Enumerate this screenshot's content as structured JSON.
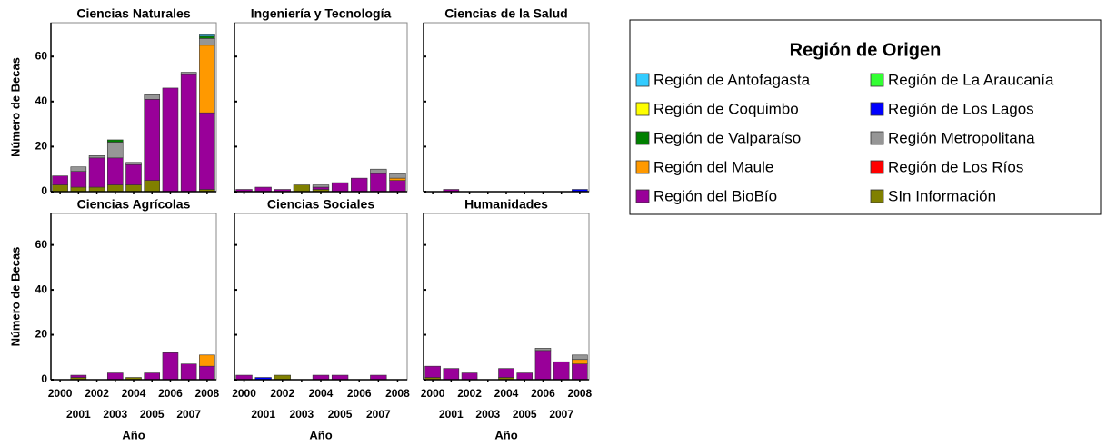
{
  "legend_title": "Región de Origen",
  "chart_data": [
    {
      "type": "bar",
      "stacked": true,
      "title": "Ciencias Naturales",
      "ylabel": "Número de Becas",
      "ytick_labels": true,
      "categories": [
        null,
        null,
        null,
        null,
        null,
        null,
        null,
        null,
        null
      ],
      "ylim": [
        0,
        75
      ],
      "yticks": [
        0,
        20,
        40,
        60
      ],
      "series": [
        {
          "name": "Región de Antofagasta",
          "color": "#33CCFF",
          "values": [
            0,
            0,
            0,
            0,
            0,
            0,
            0,
            0,
            1
          ]
        },
        {
          "name": "Región de La Araucanía",
          "color": "#33FF33",
          "values": [
            0,
            0,
            0,
            0,
            0,
            0,
            0,
            0,
            0
          ]
        },
        {
          "name": "Región de Coquimbo",
          "color": "#FFFF00",
          "values": [
            0,
            0,
            0,
            0,
            0,
            0,
            0,
            0,
            0
          ]
        },
        {
          "name": "Región de Los Lagos",
          "color": "#0000FF",
          "values": [
            0,
            0,
            0,
            0,
            0,
            0,
            0,
            0,
            0
          ]
        },
        {
          "name": "Región de Valparaíso",
          "color": "#008000",
          "values": [
            0,
            0,
            0,
            1,
            0,
            0,
            0,
            0,
            1
          ]
        },
        {
          "name": "Región Metropolitana",
          "color": "#969696",
          "values": [
            0,
            2,
            1,
            7,
            1,
            2,
            0,
            1,
            3
          ]
        },
        {
          "name": "Región del Maule",
          "color": "#FF9900",
          "values": [
            0,
            0,
            0,
            0,
            0,
            0,
            0,
            0,
            30
          ]
        },
        {
          "name": "Región de Los Ríos",
          "color": "#FF0000",
          "values": [
            0,
            0,
            0,
            0,
            0,
            0,
            0,
            0,
            0
          ]
        },
        {
          "name": "Región del BioBío",
          "color": "#990099",
          "values": [
            4,
            7,
            13,
            12,
            9,
            36,
            46,
            52,
            34
          ]
        },
        {
          "name": "SIn Información",
          "color": "#808000",
          "values": [
            3,
            2,
            2,
            3,
            3,
            5,
            0,
            0,
            1
          ]
        }
      ]
    },
    {
      "type": "bar",
      "stacked": true,
      "title": "Ingeniería y Tecnología",
      "ytick_labels": false,
      "categories": [
        null,
        null,
        null,
        null,
        null,
        null,
        null,
        null,
        null
      ],
      "ylim": [
        0,
        75
      ],
      "yticks": [
        0,
        20,
        40,
        60
      ],
      "series": [
        {
          "name": "Región de Antofagasta",
          "color": "#33CCFF",
          "values": [
            0,
            0,
            0,
            0,
            0,
            0,
            0,
            0,
            0
          ]
        },
        {
          "name": "Región de La Araucanía",
          "color": "#33FF33",
          "values": [
            0,
            0,
            0,
            0,
            0,
            0,
            0,
            0,
            0
          ]
        },
        {
          "name": "Región de Coquimbo",
          "color": "#FFFF00",
          "values": [
            0,
            0,
            0,
            0,
            0,
            0,
            0,
            0,
            0
          ]
        },
        {
          "name": "Región de Los Lagos",
          "color": "#0000FF",
          "values": [
            0,
            0,
            0,
            0,
            0,
            0,
            0,
            0,
            0
          ]
        },
        {
          "name": "Región de Valparaíso",
          "color": "#008000",
          "values": [
            0,
            0,
            0,
            0,
            0,
            0,
            0,
            0,
            0
          ]
        },
        {
          "name": "Región Metropolitana",
          "color": "#969696",
          "values": [
            0,
            0,
            0,
            0,
            1,
            0,
            0,
            2,
            2
          ]
        },
        {
          "name": "Región del Maule",
          "color": "#FF9900",
          "values": [
            0,
            0,
            0,
            0,
            0,
            0,
            0,
            0,
            1
          ]
        },
        {
          "name": "Región de Los Ríos",
          "color": "#FF0000",
          "values": [
            0,
            0,
            0,
            0,
            0,
            0,
            0,
            0,
            0
          ]
        },
        {
          "name": "Región del BioBío",
          "color": "#990099",
          "values": [
            1,
            2,
            1,
            0,
            1,
            4,
            6,
            8,
            5
          ]
        },
        {
          "name": "SIn Información",
          "color": "#808000",
          "values": [
            0,
            0,
            0,
            3,
            1,
            0,
            0,
            0,
            0
          ]
        }
      ]
    },
    {
      "type": "bar",
      "stacked": true,
      "title": "Ciencias de la Salud",
      "ytick_labels": false,
      "categories": [
        null,
        null,
        null,
        null,
        null,
        null,
        null,
        null,
        null
      ],
      "ylim": [
        0,
        75
      ],
      "yticks": [
        0,
        20,
        40,
        60
      ],
      "series": [
        {
          "name": "Región de Antofagasta",
          "color": "#33CCFF",
          "values": [
            0,
            0,
            0,
            0,
            0,
            0,
            0,
            0,
            0
          ]
        },
        {
          "name": "Región de La Araucanía",
          "color": "#33FF33",
          "values": [
            0,
            0,
            0,
            0,
            0,
            0,
            0,
            0,
            0
          ]
        },
        {
          "name": "Región de Coquimbo",
          "color": "#FFFF00",
          "values": [
            0,
            0,
            0,
            0,
            0,
            0,
            0,
            0,
            0
          ]
        },
        {
          "name": "Región de Los Lagos",
          "color": "#0000FF",
          "values": [
            0,
            0,
            0,
            0,
            0,
            0,
            0,
            0,
            1
          ]
        },
        {
          "name": "Región de Valparaíso",
          "color": "#008000",
          "values": [
            0,
            0,
            0,
            0,
            0,
            0,
            0,
            0,
            0
          ]
        },
        {
          "name": "Región Metropolitana",
          "color": "#969696",
          "values": [
            0,
            0,
            0,
            0,
            0,
            0,
            0,
            0,
            0
          ]
        },
        {
          "name": "Región del Maule",
          "color": "#FF9900",
          "values": [
            0,
            0,
            0,
            0,
            0,
            0,
            0,
            0,
            0
          ]
        },
        {
          "name": "Región de Los Ríos",
          "color": "#FF0000",
          "values": [
            0,
            0,
            0,
            0,
            0,
            0,
            0,
            0,
            0
          ]
        },
        {
          "name": "Región del BioBío",
          "color": "#990099",
          "values": [
            0,
            1,
            0,
            0,
            0,
            0,
            0,
            0,
            0
          ]
        },
        {
          "name": "SIn Información",
          "color": "#808000",
          "values": [
            0,
            0,
            0,
            0,
            0,
            0,
            0,
            0,
            0
          ]
        }
      ]
    },
    {
      "type": "bar",
      "stacked": true,
      "title": "Ciencias Agrícolas",
      "ylabel": "Número de Becas",
      "xlabel": "Año",
      "ytick_labels": true,
      "categories": [
        "2000",
        "2001",
        "2002",
        "2003",
        "2004",
        "2005",
        "2006",
        "2007",
        "2008"
      ],
      "ylim": [
        0,
        74
      ],
      "yticks": [
        0,
        20,
        40,
        60
      ],
      "series": [
        {
          "name": "Región de Antofagasta",
          "color": "#33CCFF",
          "values": [
            0,
            0,
            0,
            0,
            0,
            0,
            0,
            0,
            0
          ]
        },
        {
          "name": "Región de La Araucanía",
          "color": "#33FF33",
          "values": [
            0,
            0,
            0,
            0,
            0,
            0,
            0,
            0,
            0
          ]
        },
        {
          "name": "Región de Coquimbo",
          "color": "#FFFF00",
          "values": [
            0,
            0,
            0,
            0,
            0,
            0,
            0,
            0,
            0
          ]
        },
        {
          "name": "Región de Los Lagos",
          "color": "#0000FF",
          "values": [
            0,
            0,
            0,
            0,
            0,
            0,
            0,
            0,
            0
          ]
        },
        {
          "name": "Región de Valparaíso",
          "color": "#008000",
          "values": [
            0,
            0,
            0,
            0,
            0,
            0,
            0,
            0,
            0
          ]
        },
        {
          "name": "Región Metropolitana",
          "color": "#969696",
          "values": [
            0,
            0,
            0,
            0,
            0,
            0,
            0,
            0,
            0
          ]
        },
        {
          "name": "Región del Maule",
          "color": "#FF9900",
          "values": [
            0,
            0,
            0,
            0,
            0,
            0,
            0,
            0,
            5
          ]
        },
        {
          "name": "Región de Los Ríos",
          "color": "#FF0000",
          "values": [
            0,
            0,
            0,
            0,
            0,
            0,
            0,
            0,
            0
          ]
        },
        {
          "name": "Región del BioBío",
          "color": "#990099",
          "values": [
            0,
            1,
            0,
            3,
            0,
            3,
            12,
            7,
            6
          ]
        },
        {
          "name": "SIn Información",
          "color": "#808000",
          "values": [
            0,
            1,
            0,
            0,
            1,
            0,
            0,
            0,
            0
          ]
        }
      ]
    },
    {
      "type": "bar",
      "stacked": true,
      "title": "Ciencias Sociales",
      "xlabel": "Año",
      "ytick_labels": false,
      "categories": [
        "2000",
        "2001",
        "2002",
        "2003",
        "2004",
        "2005",
        "2006",
        "2007",
        "2008"
      ],
      "ylim": [
        0,
        74
      ],
      "yticks": [
        0,
        20,
        40,
        60
      ],
      "series": [
        {
          "name": "Región de Antofagasta",
          "color": "#33CCFF",
          "values": [
            0,
            0,
            0,
            0,
            0,
            0,
            0,
            0,
            0
          ]
        },
        {
          "name": "Región de La Araucanía",
          "color": "#33FF33",
          "values": [
            0,
            0,
            0,
            0,
            0,
            0,
            0,
            0,
            0
          ]
        },
        {
          "name": "Región de Coquimbo",
          "color": "#FFFF00",
          "values": [
            0,
            0,
            0,
            0,
            0,
            0,
            0,
            0,
            0
          ]
        },
        {
          "name": "Región de Los Lagos",
          "color": "#0000FF",
          "values": [
            0,
            1,
            0,
            0,
            0,
            0,
            0,
            0,
            0
          ]
        },
        {
          "name": "Región de Valparaíso",
          "color": "#008000",
          "values": [
            0,
            0,
            0,
            0,
            0,
            0,
            0,
            0,
            0
          ]
        },
        {
          "name": "Región Metropolitana",
          "color": "#969696",
          "values": [
            0,
            0,
            0,
            0,
            0,
            0,
            0,
            0,
            0
          ]
        },
        {
          "name": "Región del Maule",
          "color": "#FF9900",
          "values": [
            0,
            0,
            0,
            0,
            0,
            0,
            0,
            0,
            0
          ]
        },
        {
          "name": "Región de Los Ríos",
          "color": "#FF0000",
          "values": [
            0,
            0,
            0,
            0,
            0,
            0,
            0,
            0,
            0
          ]
        },
        {
          "name": "Región del BioBío",
          "color": "#990099",
          "values": [
            2,
            0,
            0,
            0,
            2,
            2,
            0,
            2,
            0
          ]
        },
        {
          "name": "SIn Información",
          "color": "#808000",
          "values": [
            0,
            0,
            2,
            0,
            0,
            0,
            0,
            0,
            0
          ]
        }
      ]
    },
    {
      "type": "bar",
      "stacked": true,
      "title": "Humanidades",
      "xlabel": "Año",
      "ytick_labels": false,
      "categories": [
        "2000",
        "2001",
        "2002",
        "2003",
        "2004",
        "2005",
        "2006",
        "2007",
        "2008"
      ],
      "ylim": [
        0,
        74
      ],
      "yticks": [
        0,
        20,
        40,
        60
      ],
      "series": [
        {
          "name": "Región de Antofagasta",
          "color": "#33CCFF",
          "values": [
            0,
            0,
            0,
            0,
            0,
            0,
            0,
            0,
            0
          ]
        },
        {
          "name": "Región de La Araucanía",
          "color": "#33FF33",
          "values": [
            0,
            0,
            0,
            0,
            0,
            0,
            0,
            0,
            0
          ]
        },
        {
          "name": "Región de Coquimbo",
          "color": "#FFFF00",
          "values": [
            0,
            0,
            0,
            0,
            0,
            0,
            0,
            0,
            0
          ]
        },
        {
          "name": "Región de Los Lagos",
          "color": "#0000FF",
          "values": [
            0,
            0,
            0,
            0,
            0,
            0,
            0,
            0,
            0
          ]
        },
        {
          "name": "Región de Valparaíso",
          "color": "#008000",
          "values": [
            0,
            0,
            0,
            0,
            0,
            0,
            0,
            0,
            0
          ]
        },
        {
          "name": "Región Metropolitana",
          "color": "#969696",
          "values": [
            0,
            0,
            0,
            0,
            0,
            0,
            1,
            0,
            2
          ]
        },
        {
          "name": "Región del Maule",
          "color": "#FF9900",
          "values": [
            0,
            0,
            0,
            0,
            0,
            0,
            0,
            0,
            2
          ]
        },
        {
          "name": "Región de Los Ríos",
          "color": "#FF0000",
          "values": [
            0,
            0,
            0,
            0,
            0,
            0,
            0,
            0,
            0
          ]
        },
        {
          "name": "Región del BioBío",
          "color": "#990099",
          "values": [
            5,
            5,
            3,
            0,
            4,
            3,
            13,
            8,
            7
          ]
        },
        {
          "name": "SIn Información",
          "color": "#808000",
          "values": [
            1,
            0,
            0,
            0,
            1,
            0,
            0,
            0,
            0
          ]
        }
      ]
    }
  ]
}
